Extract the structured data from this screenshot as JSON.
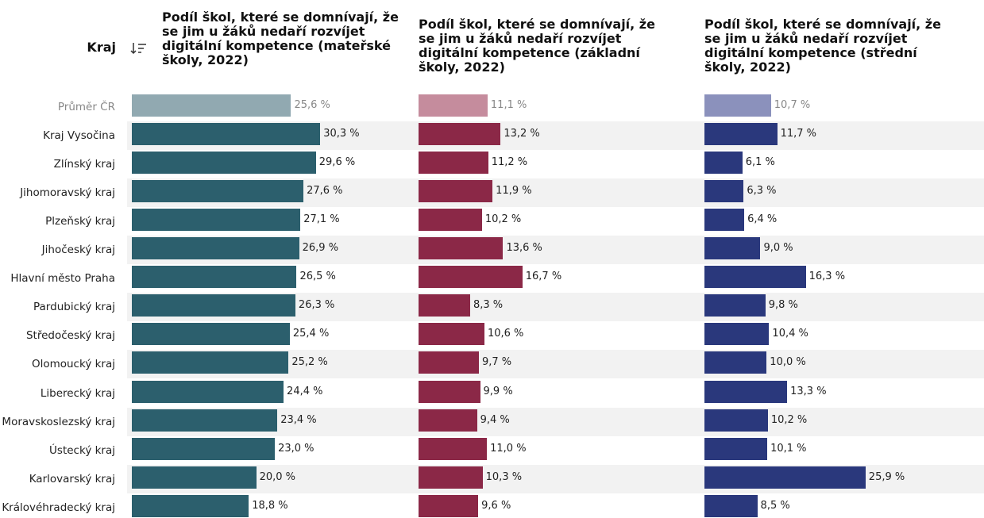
{
  "row_header": "Kraj",
  "categories": [
    "Průměr ČR",
    "Kraj Vysočina",
    "Zlínský kraj",
    "Jihomoravský kraj",
    "Plzeňský kraj",
    "Jihočeský kraj",
    "Hlavní město Praha",
    "Pardubický kraj",
    "Středočeský kraj",
    "Olomoucký kraj",
    "Liberecký kraj",
    "Moravskoslezský kraj",
    "Ústecký kraj",
    "Karlovarský kraj",
    "Královéhradecký kraj"
  ],
  "columns": [
    {
      "title": "Podíl škol, které se domnívají, že se jim u žáků nedaří rozvíjet digitální kompetence (mateřské školy, 2022)",
      "color": "#2c5f6d",
      "average_color": "#91a9b1",
      "values": [
        25.6,
        30.3,
        29.6,
        27.6,
        27.1,
        26.9,
        26.5,
        26.3,
        25.4,
        25.2,
        24.4,
        23.4,
        23.0,
        20.0,
        18.8
      ],
      "value_labels": [
        "25,6 %",
        "30,3 %",
        "29,6 %",
        "27,6 %",
        "27,1 %",
        "26,9 %",
        "26,5 %",
        "26,3 %",
        "25,4 %",
        "25,2 %",
        "24,4 %",
        "23,4 %",
        "23,0 %",
        "20,0 %",
        "18,8 %"
      ]
    },
    {
      "title": "Podíl škol, které se domnívají, že se jim u žáků nedaří rozvíjet digitální kompetence (základní školy, 2022)",
      "color": "#8b2847",
      "average_color": "#c58c9d",
      "values": [
        11.1,
        13.2,
        11.2,
        11.9,
        10.2,
        13.6,
        16.7,
        8.3,
        10.6,
        9.7,
        9.9,
        9.4,
        11.0,
        10.3,
        9.6
      ],
      "value_labels": [
        "11,1 %",
        "13,2 %",
        "11,2 %",
        "11,9 %",
        "10,2 %",
        "13,6 %",
        "16,7 %",
        "8,3 %",
        "10,6 %",
        "9,7 %",
        "9,9 %",
        "9,4 %",
        "11,0 %",
        "10,3 %",
        "9,6 %"
      ]
    },
    {
      "title": "Podíl škol, které se domnívají, že se jim u žáků nedaří rozvíjet digitální kompetence (střední školy, 2022)",
      "color": "#2a387c",
      "average_color": "#8b91bc",
      "values": [
        10.7,
        11.7,
        6.1,
        6.3,
        6.4,
        9.0,
        16.3,
        9.8,
        10.4,
        10.0,
        13.3,
        10.2,
        10.1,
        25.9,
        8.5
      ],
      "value_labels": [
        "10,7 %",
        "11,7 %",
        "6,1 %",
        "6,3 %",
        "6,4 %",
        "9,0 %",
        "16,3 %",
        "9,8 %",
        "10,4 %",
        "10,0 %",
        "13,3 %",
        "10,2 %",
        "10,1 %",
        "25,9 %",
        "8,5 %"
      ]
    }
  ]
}
